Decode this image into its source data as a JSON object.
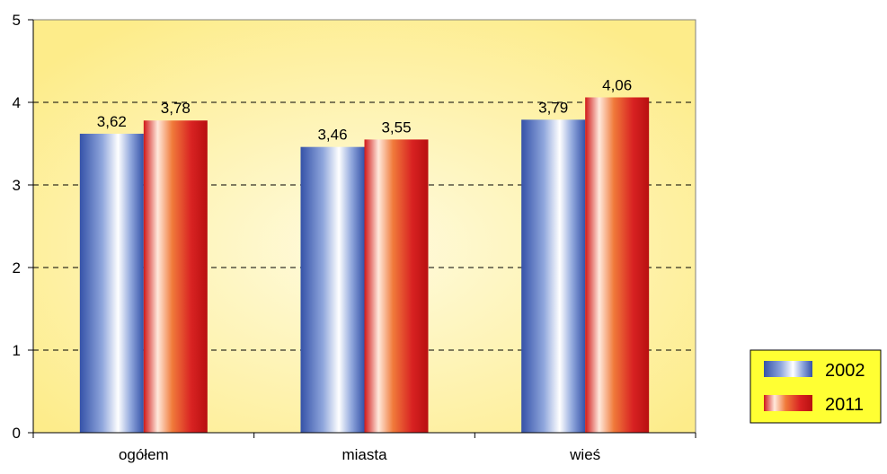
{
  "chart_data": {
    "type": "bar",
    "categories": [
      "ogółem",
      "miasta",
      "wieś"
    ],
    "series": [
      {
        "name": "2002",
        "values": [
          3.62,
          3.46,
          3.79
        ],
        "labels": [
          "3,62",
          "3,46",
          "3,79"
        ],
        "color": "#3a5fb0"
      },
      {
        "name": "2011",
        "values": [
          3.78,
          3.55,
          4.06
        ],
        "labels": [
          "3,78",
          "3,55",
          "4,06"
        ],
        "color": "#d42020"
      }
    ],
    "ylim": [
      0,
      5
    ],
    "yticks": [
      0,
      1,
      2,
      3,
      4,
      5
    ],
    "ytick_labels": [
      "0",
      "1",
      "2",
      "3",
      "4",
      "5"
    ],
    "grid": "dashed-horizontal",
    "legend_position": "right",
    "background": "#fdf2a0",
    "legend_background": "#ffff33"
  }
}
